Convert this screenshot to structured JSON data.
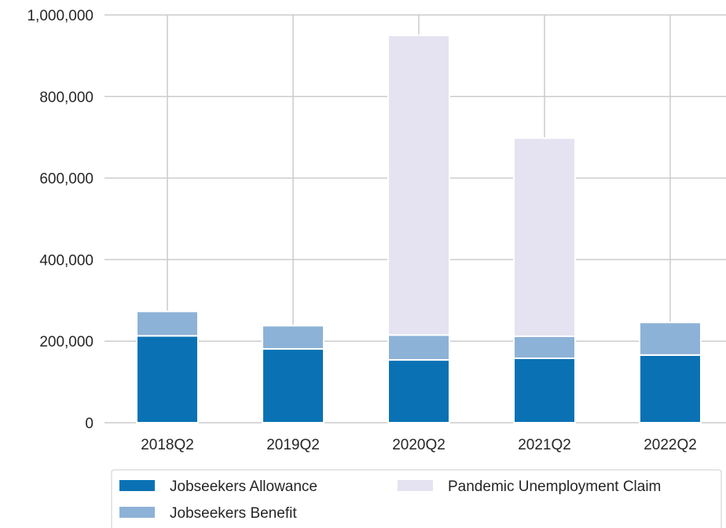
{
  "chart_data": {
    "type": "bar",
    "stacked": true,
    "categories": [
      "2018Q2",
      "2019Q2",
      "2020Q2",
      "2021Q2",
      "2022Q2"
    ],
    "series": [
      {
        "name": "Jobseekers Allowance",
        "color": "#0a72b4",
        "values": [
          213000,
          181000,
          154000,
          158000,
          166000
        ]
      },
      {
        "name": "Jobseekers Benefit",
        "color": "#8db2d7",
        "values": [
          60000,
          57000,
          61000,
          54000,
          80000
        ]
      },
      {
        "name": "Pandemic Unemployment Claim",
        "color": "#e5e2f1",
        "values": [
          0,
          0,
          735000,
          486000,
          0
        ]
      }
    ],
    "yticks": [
      "0",
      "200,000",
      "400,000",
      "600,000",
      "800,000",
      "1,000,000"
    ],
    "ylim": [
      0,
      1000000
    ],
    "grid": true,
    "legend_position": "bottom"
  }
}
